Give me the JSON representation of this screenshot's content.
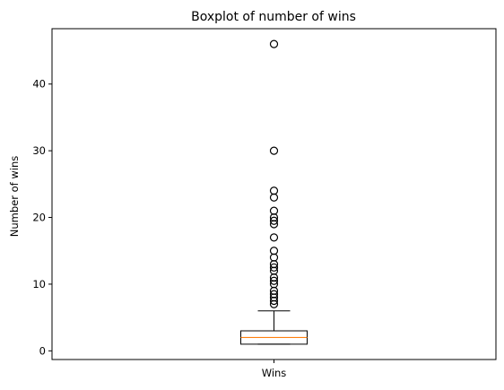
{
  "chart_data": {
    "type": "boxplot",
    "title": "Boxplot of number of wins",
    "xlabel": "",
    "ylabel": "Number of wins",
    "categories": [
      "Wins"
    ],
    "ylim": [
      -1.3,
      48.3
    ],
    "yticks": [
      0,
      10,
      20,
      30,
      40
    ],
    "grid": false,
    "box": {
      "whisker_low": 1,
      "q1": 1,
      "median": 2,
      "q3": 3,
      "whisker_high": 6
    },
    "outliers": [
      7,
      7.5,
      8,
      8.5,
      9,
      10,
      10.5,
      11,
      12,
      12.5,
      13,
      14,
      15,
      17,
      19,
      19.5,
      20,
      21,
      23,
      24,
      30,
      46
    ],
    "colors": {
      "box": "#000000",
      "median": "#ff7f0e",
      "outlier": "#000000"
    }
  }
}
